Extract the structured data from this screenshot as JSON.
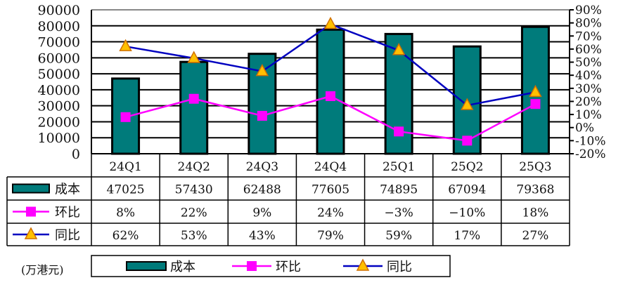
{
  "chart_data": {
    "type": "bar+line",
    "categories": [
      "24Q1",
      "24Q2",
      "24Q3",
      "24Q4",
      "25Q1",
      "25Q2",
      "25Q3"
    ],
    "series": [
      {
        "name": "成本",
        "kind": "bar",
        "axis": "left",
        "values": [
          47025,
          57430,
          62488,
          77605,
          74895,
          67094,
          79368
        ],
        "color": "#007b7b"
      },
      {
        "name": "环比",
        "kind": "line",
        "axis": "right",
        "values": [
          8,
          22,
          9,
          24,
          -3,
          -10,
          18
        ],
        "labels": [
          "8%",
          "22%",
          "9%",
          "24%",
          "-3%",
          "-10%",
          "18%"
        ],
        "color": "#ff00ff",
        "marker": "square"
      },
      {
        "name": "同比",
        "kind": "line",
        "axis": "right",
        "values": [
          62,
          53,
          43,
          79,
          59,
          17,
          27
        ],
        "labels": [
          "62%",
          "53%",
          "43%",
          "79%",
          "59%",
          "17%",
          "27%"
        ],
        "color": "#0000c0",
        "marker": "triangle",
        "marker_color": "#ffc000"
      }
    ],
    "left_axis": {
      "ylim": [
        0,
        90000
      ],
      "ticks": [
        "0",
        "10000",
        "20000",
        "30000",
        "40000",
        "50000",
        "60000",
        "70000",
        "80000",
        "90000"
      ]
    },
    "right_axis": {
      "ylim": [
        -20,
        90
      ],
      "ticks": [
        "-20%",
        "-10%",
        "0%",
        "10%",
        "20%",
        "30%",
        "40%",
        "50%",
        "60%",
        "70%",
        "80%",
        "90%"
      ]
    },
    "grid": true,
    "legend": "bottom",
    "unit_note": "(万港元)",
    "data_table": true
  }
}
